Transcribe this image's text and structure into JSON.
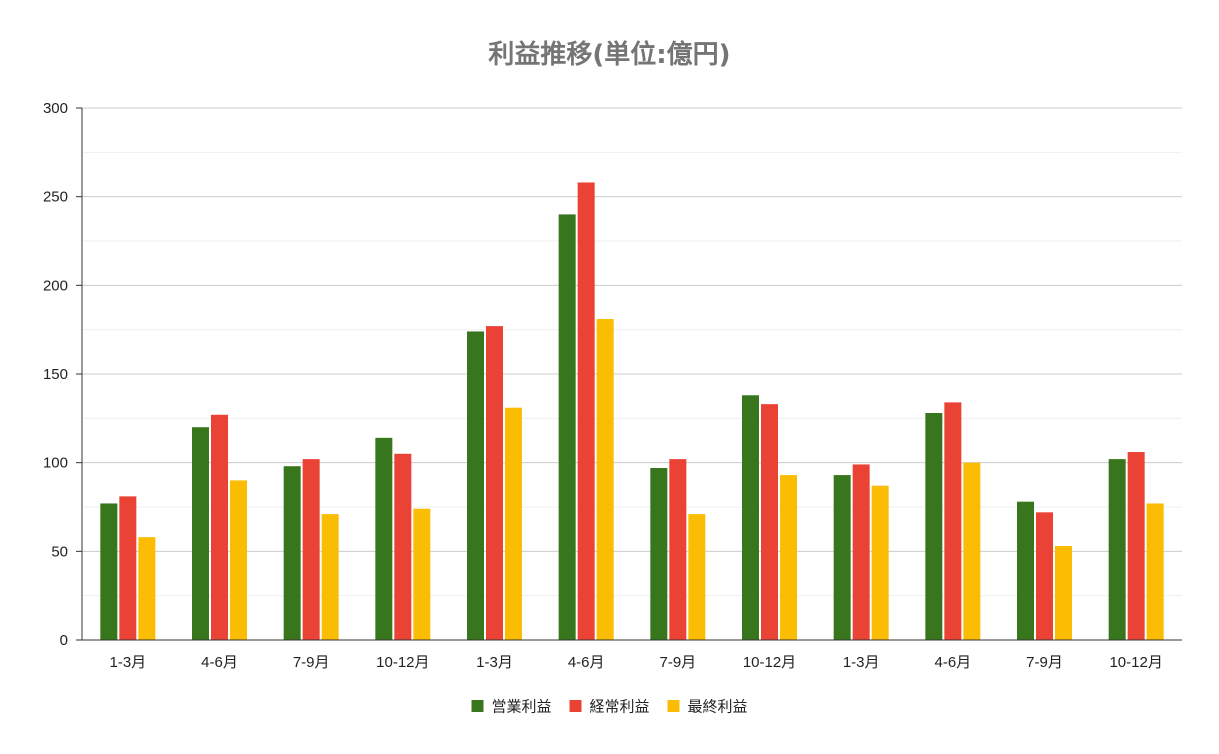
{
  "chart_data": {
    "type": "bar",
    "title": "利益推移(単位:億円)",
    "xlabel": "",
    "ylabel": "",
    "ylim": [
      0,
      300
    ],
    "yticks": [
      0,
      50,
      100,
      150,
      200,
      250,
      300
    ],
    "grid": true,
    "legend_position": "bottom",
    "categories": [
      "1-3月",
      "4-6月",
      "7-9月",
      "10-12月",
      "1-3月",
      "4-6月",
      "7-9月",
      "10-12月",
      "1-3月",
      "4-6月",
      "7-9月",
      "10-12月"
    ],
    "series": [
      {
        "name": "営業利益",
        "color": "#38761d",
        "values": [
          77,
          120,
          98,
          114,
          174,
          240,
          97,
          138,
          93,
          128,
          78,
          102
        ]
      },
      {
        "name": "経常利益",
        "color": "#ea4335",
        "values": [
          81,
          127,
          102,
          105,
          177,
          258,
          102,
          133,
          99,
          134,
          72,
          106
        ]
      },
      {
        "name": "最終利益",
        "color": "#fbbc04",
        "values": [
          58,
          90,
          71,
          74,
          131,
          181,
          71,
          93,
          87,
          100,
          53,
          77
        ]
      }
    ]
  }
}
